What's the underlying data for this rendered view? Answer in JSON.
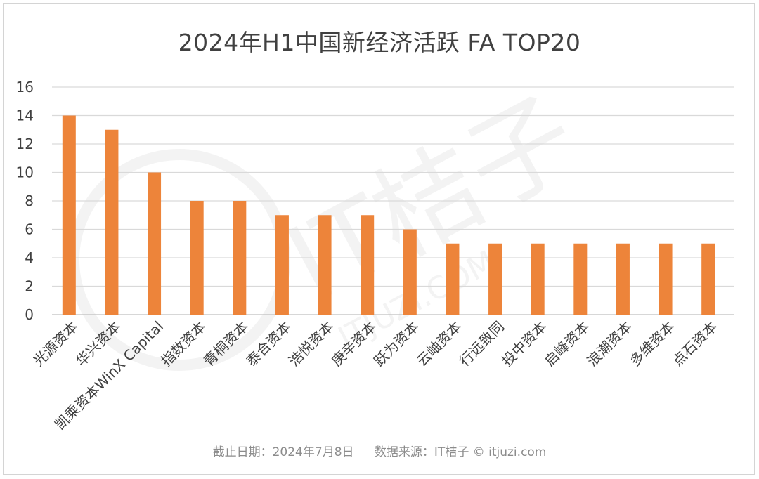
{
  "title": "2024年H1中国新经济活跃 FA TOP20",
  "footer": {
    "date": "截止日期：2024年7月8日",
    "source": "数据来源：IT桔子 © itjuzi.com"
  },
  "watermark": {
    "main": "IT桔子",
    "sub": "ITJUZI.COM"
  },
  "colors": {
    "bar": "#ED843A",
    "grid": "#d9d9d9",
    "text": "#404040"
  },
  "chart_data": {
    "type": "bar",
    "title": "2024年H1中国新经济活跃 FA TOP20",
    "categories": [
      "光源资本",
      "华兴资本",
      "凯乘资本WinX Capital",
      "指数资本",
      "青桐资本",
      "泰合资本",
      "浩悦资本",
      "庚辛资本",
      "跃为资本",
      "云岫资本",
      "行远致同",
      "投中资本",
      "启峰资本",
      "浪潮资本",
      "多维资本",
      "点石资本"
    ],
    "values": [
      14,
      13,
      10,
      8,
      8,
      7,
      7,
      7,
      6,
      5,
      5,
      5,
      5,
      5,
      5,
      5
    ],
    "yticks": [
      "0",
      "2",
      "4",
      "6",
      "8",
      "10",
      "12",
      "14",
      "16"
    ],
    "ylim": [
      0,
      16
    ],
    "xlabel": "",
    "ylabel": "",
    "grid": true,
    "legend": "none"
  }
}
